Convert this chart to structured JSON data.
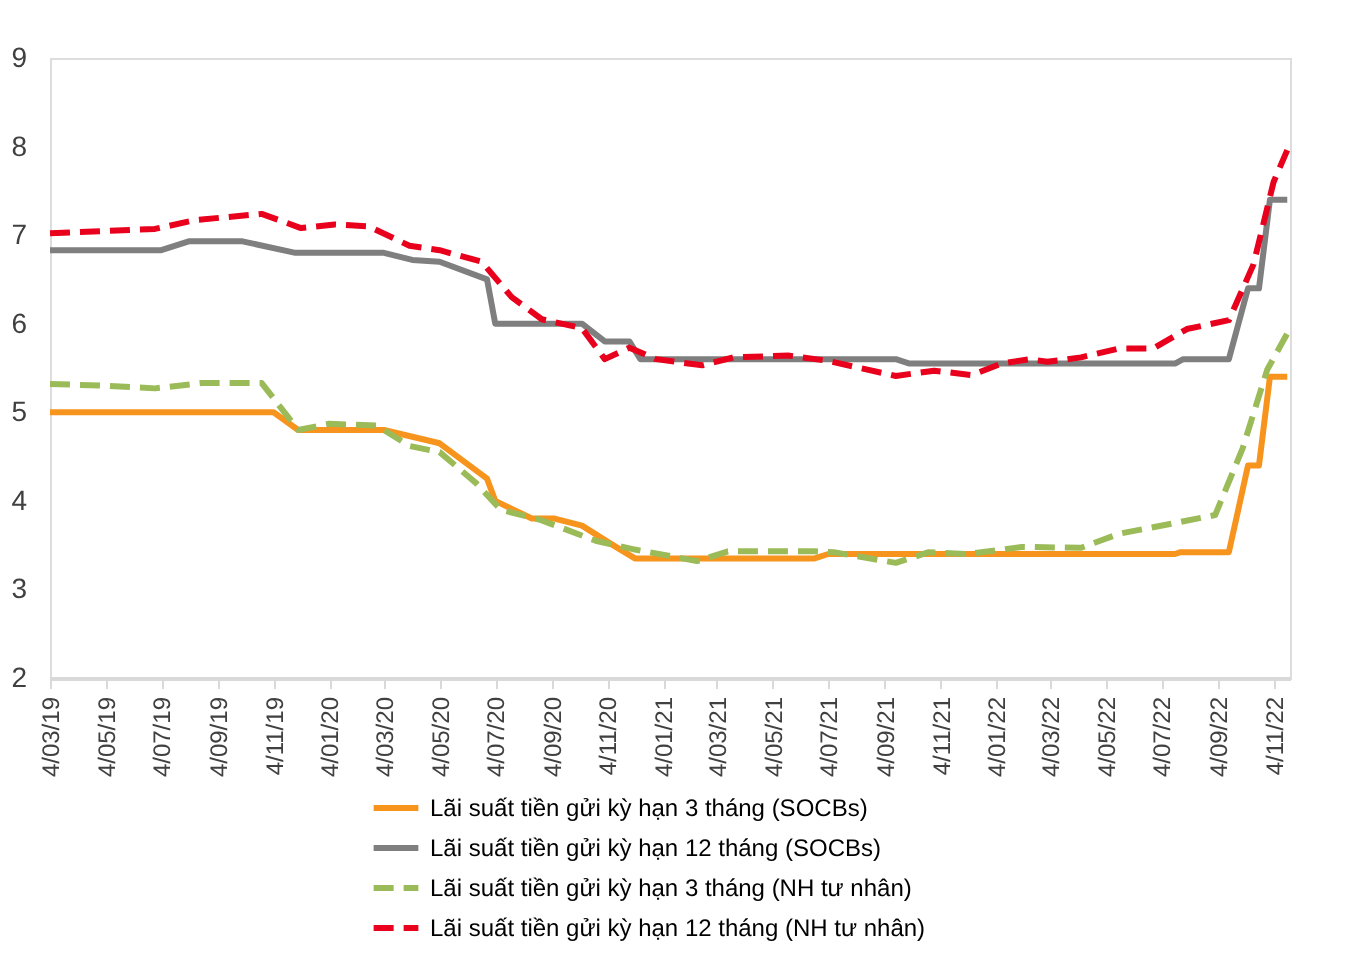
{
  "chart_data": {
    "type": "line",
    "xlim": [
      "2019-03-04",
      "2022-11-22"
    ],
    "ylim": [
      2,
      9
    ],
    "yticks": [
      2,
      3,
      4,
      5,
      6,
      7,
      8,
      9
    ],
    "grid": false,
    "legend": "bottom",
    "xticks": [
      {
        "value": "2019-03-04",
        "label": "4/03/19"
      },
      {
        "value": "2019-05-04",
        "label": "4/05/19"
      },
      {
        "value": "2019-07-04",
        "label": "4/07/19"
      },
      {
        "value": "2019-09-04",
        "label": "4/09/19"
      },
      {
        "value": "2019-11-04",
        "label": "4/11/19"
      },
      {
        "value": "2020-01-04",
        "label": "4/01/20"
      },
      {
        "value": "2020-03-04",
        "label": "4/03/20"
      },
      {
        "value": "2020-05-04",
        "label": "4/05/20"
      },
      {
        "value": "2020-07-04",
        "label": "4/07/20"
      },
      {
        "value": "2020-09-04",
        "label": "4/09/20"
      },
      {
        "value": "2020-11-04",
        "label": "4/11/20"
      },
      {
        "value": "2021-01-04",
        "label": "4/01/21"
      },
      {
        "value": "2021-03-04",
        "label": "4/03/21"
      },
      {
        "value": "2021-05-04",
        "label": "4/05/21"
      },
      {
        "value": "2021-07-04",
        "label": "4/07/21"
      },
      {
        "value": "2021-09-04",
        "label": "4/09/21"
      },
      {
        "value": "2021-11-04",
        "label": "4/11/21"
      },
      {
        "value": "2022-01-04",
        "label": "4/01/22"
      },
      {
        "value": "2022-03-04",
        "label": "4/03/22"
      },
      {
        "value": "2022-05-04",
        "label": "4/05/22"
      },
      {
        "value": "2022-07-04",
        "label": "4/07/22"
      },
      {
        "value": "2022-09-04",
        "label": "4/09/22"
      },
      {
        "value": "2022-11-04",
        "label": "4/11/22"
      }
    ],
    "series": [
      {
        "name": "Lãi suất tiền gửi kỳ hạn 3 tháng  (SOCBs)",
        "color": "#f7941d",
        "line_style": "solid",
        "x": [
          "2019-03-04",
          "2019-11-04",
          "2019-12-01",
          "2020-03-04",
          "2020-05-04",
          "2020-06-25",
          "2020-07-04",
          "2020-08-13",
          "2020-09-07",
          "2020-10-07",
          "2020-11-10",
          "2020-12-04",
          "2021-06-19",
          "2021-07-04",
          "2022-07-19",
          "2022-07-25",
          "2022-09-16",
          "2022-10-07",
          "2022-10-19",
          "2022-10-31",
          "2022-11-19"
        ],
        "values": [
          5.0,
          5.0,
          4.8,
          4.8,
          4.65,
          4.25,
          4.0,
          3.8,
          3.8,
          3.72,
          3.5,
          3.35,
          3.35,
          3.4,
          3.4,
          3.42,
          3.42,
          4.4,
          4.4,
          5.4,
          5.4
        ]
      },
      {
        "name": "Lãi suất tiền gửi kỳ hạn 12 tháng  (SOCBs)",
        "color": "#7f7f7f",
        "line_style": "solid",
        "x": [
          "2019-03-04",
          "2019-07-04",
          "2019-08-03",
          "2019-10-01",
          "2019-11-28",
          "2020-03-04",
          "2020-04-04",
          "2020-05-04",
          "2020-06-25",
          "2020-07-04",
          "2020-10-07",
          "2020-11-01",
          "2020-11-28",
          "2020-12-10",
          "2021-09-16",
          "2021-10-01",
          "2022-07-19",
          "2022-07-28",
          "2022-09-16",
          "2022-10-07",
          "2022-10-19",
          "2022-10-31",
          "2022-11-19"
        ],
        "values": [
          6.83,
          6.83,
          6.93,
          6.93,
          6.8,
          6.8,
          6.72,
          6.7,
          6.5,
          6.0,
          6.0,
          5.8,
          5.8,
          5.6,
          5.6,
          5.55,
          5.55,
          5.6,
          5.6,
          6.4,
          6.4,
          7.4,
          7.4
        ]
      },
      {
        "name": "Lãi suất tiền gửi kỳ hạn 3 tháng  (NH tư nhân)",
        "color": "#9bbb59",
        "line_style": "dashed",
        "x": [
          "2019-03-04",
          "2019-05-04",
          "2019-06-27",
          "2019-08-17",
          "2019-10-22",
          "2019-12-01",
          "2020-01-04",
          "2020-02-25",
          "2020-04-01",
          "2020-05-04",
          "2020-06-13",
          "2020-07-10",
          "2020-08-24",
          "2020-10-22",
          "2020-12-04",
          "2021-02-10",
          "2021-03-16",
          "2021-06-19",
          "2021-07-10",
          "2021-09-16",
          "2021-10-22",
          "2021-12-04",
          "2022-02-01",
          "2022-04-07",
          "2022-05-19",
          "2022-07-19",
          "2022-09-01",
          "2022-10-01",
          "2022-10-28",
          "2022-11-19"
        ],
        "values": [
          5.32,
          5.3,
          5.27,
          5.33,
          5.33,
          4.8,
          4.87,
          4.85,
          4.62,
          4.55,
          4.2,
          3.9,
          3.78,
          3.55,
          3.45,
          3.32,
          3.43,
          3.43,
          3.42,
          3.3,
          3.42,
          3.4,
          3.48,
          3.47,
          3.63,
          3.75,
          3.84,
          4.59,
          5.48,
          5.89
        ]
      },
      {
        "name": "Lãi suất tiền gửi kỳ hạn 12 tháng  (NH tư nhân)",
        "color": "#e8001c",
        "line_style": "dashed",
        "x": [
          "2019-03-04",
          "2019-06-27",
          "2019-08-10",
          "2019-10-22",
          "2019-12-04",
          "2020-01-10",
          "2020-02-16",
          "2020-04-01",
          "2020-05-04",
          "2020-06-19",
          "2020-07-22",
          "2020-08-24",
          "2020-10-07",
          "2020-11-01",
          "2020-11-28",
          "2020-12-27",
          "2021-02-16",
          "2021-03-22",
          "2021-05-22",
          "2021-07-04",
          "2021-09-16",
          "2021-10-28",
          "2021-12-08",
          "2022-01-10",
          "2022-02-10",
          "2022-03-01",
          "2022-04-07",
          "2022-05-19",
          "2022-06-25",
          "2022-08-01",
          "2022-09-16",
          "2022-10-13",
          "2022-11-04",
          "2022-11-19"
        ],
        "values": [
          7.02,
          7.07,
          7.17,
          7.24,
          7.08,
          7.12,
          7.1,
          6.88,
          6.83,
          6.7,
          6.3,
          6.05,
          5.95,
          5.6,
          5.73,
          5.6,
          5.53,
          5.62,
          5.64,
          5.58,
          5.41,
          5.47,
          5.42,
          5.55,
          5.6,
          5.57,
          5.62,
          5.72,
          5.72,
          5.94,
          6.04,
          6.67,
          7.6,
          7.96
        ]
      }
    ]
  }
}
